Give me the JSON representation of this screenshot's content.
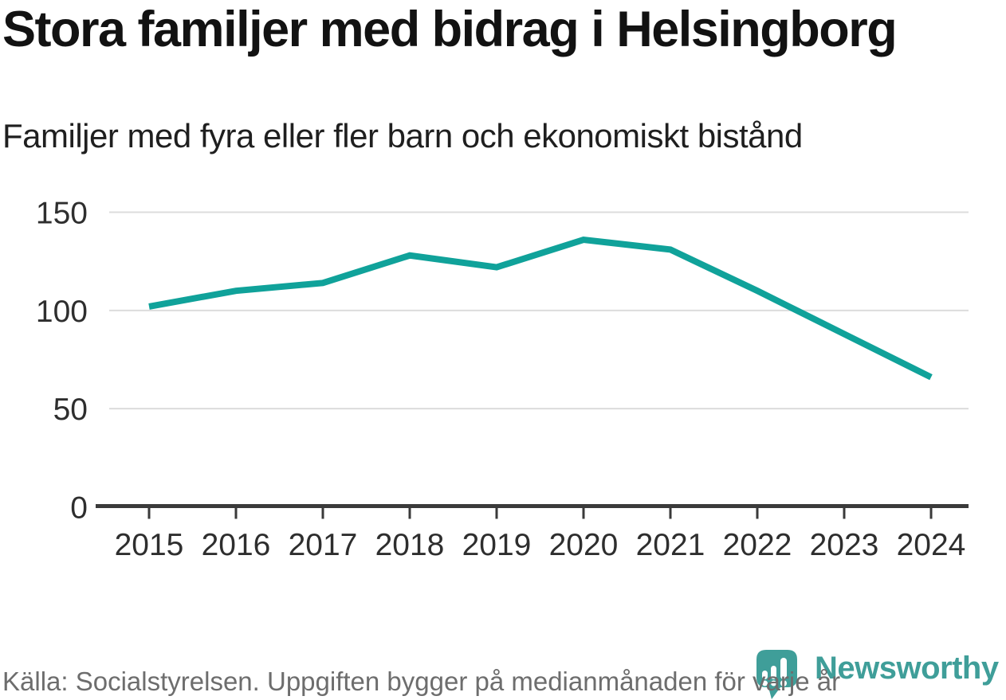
{
  "chart_data": {
    "type": "line",
    "title": "Stora familjer med bidrag i Helsingborg",
    "subtitle": "Familjer med fyra eller fler barn och ekonomiskt bistånd",
    "x": [
      2015,
      2016,
      2017,
      2018,
      2019,
      2020,
      2021,
      2022,
      2023,
      2024
    ],
    "values": [
      102,
      110,
      114,
      128,
      122,
      136,
      131,
      110,
      88,
      66
    ],
    "series_name": "Familjer med fyra eller fler barn och ekonomiskt bistånd",
    "xlabel": "",
    "ylabel": "",
    "ylim": [
      0,
      150
    ],
    "yticks": [
      0,
      50,
      100,
      150
    ],
    "grid": true,
    "legend": false,
    "source": "Källa: Socialstyrelsen. Uppgiften bygger på medianmånaden för varje år"
  },
  "brand": {
    "name": "Newsworthy"
  },
  "colors": {
    "line": "#10a29a",
    "brand_teal": "#3f9e99",
    "grid": "#dcdcdc",
    "axis": "#3a3a3a",
    "title_text": "#121212",
    "footer_text": "#6d6d6d"
  }
}
